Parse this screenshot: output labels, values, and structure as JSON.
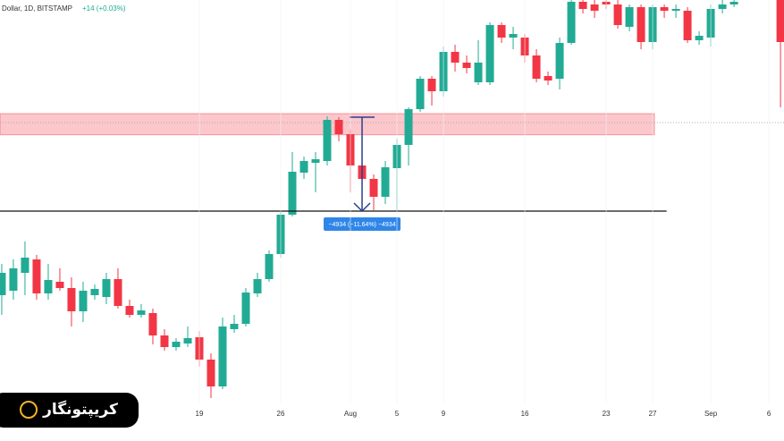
{
  "chart_data": {
    "type": "candlestick",
    "title": "Dollar, 1D, BITSTAMP",
    "change": "+14 (+0.03%)",
    "up_color": "#22ab94",
    "down_color": "#f23645",
    "xlim": [
      1.85,
      69.3
    ],
    "ylim": [
      25374,
      48545
    ],
    "xticks": [
      {
        "value": 19,
        "label": "19"
      },
      {
        "value": 26,
        "label": "26"
      },
      {
        "value": 32,
        "label": "Aug"
      },
      {
        "value": 36,
        "label": "5"
      },
      {
        "value": 40,
        "label": "9"
      },
      {
        "value": 47,
        "label": "16"
      },
      {
        "value": 54,
        "label": "23"
      },
      {
        "value": 58,
        "label": "27"
      },
      {
        "value": 63,
        "label": "Sep"
      },
      {
        "value": 68,
        "label": "6"
      }
    ],
    "x": [
      2,
      3,
      4,
      5,
      6,
      7,
      8,
      9,
      10,
      11,
      12,
      13,
      14,
      15,
      16,
      17,
      18,
      19,
      20,
      21,
      22,
      23,
      24,
      25,
      26,
      27,
      28,
      29,
      30,
      31,
      32,
      33,
      34,
      35,
      36,
      37,
      38,
      39,
      40,
      41,
      42,
      43,
      44,
      45,
      46,
      47,
      48,
      49,
      50,
      51,
      52,
      53,
      54,
      55,
      56,
      57,
      58,
      59,
      60,
      61,
      62,
      63,
      64,
      65,
      69
    ],
    "open": [
      33035,
      33270,
      34210,
      34915,
      33129,
      33740,
      33411,
      32189,
      33035,
      32941,
      33881,
      32471,
      32001,
      32095,
      30920,
      30309,
      30497,
      30826,
      29651,
      28241,
      31249,
      31531,
      33129,
      33881,
      35197,
      37265,
      39474,
      39991,
      40085,
      42247,
      41495,
      39850,
      39145,
      38205,
      39709,
      40931,
      42811,
      44409,
      43751,
      45819,
      45255,
      44221,
      44221,
      47229,
      46571,
      46571,
      45631,
      44550,
      44409,
      46289,
      48451,
      48310,
      48451,
      48310,
      47135,
      48169,
      46336,
      48169,
      47981,
      47981,
      46430,
      46571,
      48075,
      48310,
      48545
    ],
    "high": [
      34680,
      34915,
      35855,
      35150,
      34680,
      34445,
      33975,
      33740,
      33599,
      34210,
      34445,
      32800,
      32565,
      32330,
      31249,
      30779,
      31390,
      31155,
      29980,
      31860,
      32001,
      33411,
      34210,
      35385,
      37500,
      40555,
      40320,
      40555,
      42435,
      42388,
      41730,
      40085,
      39380,
      40085,
      41260,
      42905,
      44550,
      44550,
      46101,
      46195,
      45631,
      46430,
      47370,
      47370,
      47135,
      46759,
      45960,
      44785,
      46571,
      48545,
      48545,
      48545,
      48545,
      48545,
      48310,
      48310,
      48310,
      48310,
      48310,
      48169,
      46900,
      48310,
      48545,
      48545,
      48545
    ],
    "low": [
      32001,
      32800,
      33035,
      32800,
      32800,
      33270,
      31390,
      31625,
      32800,
      32565,
      32330,
      31860,
      31860,
      30450,
      30121,
      30121,
      30309,
      29275,
      27630,
      28100,
      31061,
      31390,
      32941,
      33740,
      35009,
      37171,
      39145,
      38440,
      39850,
      41119,
      38440,
      37735,
      37500,
      37829,
      37453,
      39850,
      42670,
      42999,
      43469,
      44785,
      44691,
      44080,
      44080,
      46289,
      45960,
      45255,
      44221,
      44080,
      43845,
      46195,
      47840,
      47605,
      48075,
      47041,
      46900,
      45960,
      45960,
      47605,
      47605,
      46289,
      46195,
      46101,
      47840,
      48169,
      42905
    ],
    "close": [
      34210,
      34445,
      35009,
      33129,
      33834,
      33411,
      32189,
      33270,
      33364,
      33881,
      32471,
      32001,
      32236,
      30920,
      30309,
      30591,
      30779,
      29651,
      28241,
      31390,
      31531,
      33176,
      33881,
      35197,
      37265,
      39521,
      40085,
      40179,
      42247,
      41495,
      39850,
      39145,
      38205,
      39756,
      40931,
      42811,
      44409,
      43751,
      45819,
      45255,
      44973,
      45255,
      47229,
      46571,
      46759,
      45631,
      44409,
      44315,
      46289,
      48451,
      48075,
      47981,
      48310,
      47229,
      48169,
      46336,
      48169,
      47981,
      48075,
      46430,
      46665,
      48075,
      48310,
      48451,
      46336
    ],
    "zone": {
      "low": 41464,
      "high": 42576,
      "x_end": 58.15
    },
    "hline": {
      "value": 37453,
      "x_end": 59.2
    },
    "price_line": 42106,
    "measure": {
      "x": 33,
      "from": 42388,
      "to": 37453,
      "label": "−4934 (−11.64%) −4934"
    },
    "watermark": "کریپتونگار"
  }
}
